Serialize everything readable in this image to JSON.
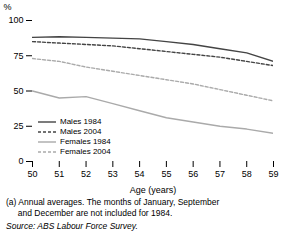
{
  "chart_data": {
    "type": "line",
    "x": [
      50,
      51,
      52,
      53,
      54,
      55,
      56,
      57,
      58,
      59
    ],
    "xlabel": "Age (years)",
    "ylabel": "%",
    "xlim": [
      50,
      59
    ],
    "xticks": [
      50,
      51,
      52,
      53,
      54,
      55,
      56,
      57,
      58,
      59
    ],
    "ylim": [
      0,
      100
    ],
    "yticks": [
      0,
      25,
      50,
      75,
      100
    ],
    "grid": false,
    "legend": "lower left",
    "series": [
      {
        "name": "Males 1984",
        "color": "#444444",
        "line_style": "solid",
        "values": [
          88,
          88.5,
          88,
          87.5,
          87,
          85,
          83,
          80,
          77,
          71
        ]
      },
      {
        "name": "Males 2004",
        "color": "#444444",
        "line_style": "dashed",
        "values": [
          85,
          84,
          83,
          82,
          80,
          78,
          76,
          74,
          71,
          68
        ]
      },
      {
        "name": "Females 1984",
        "color": "#aaaaaa",
        "line_style": "solid",
        "values": [
          50,
          45,
          46,
          41,
          36,
          31,
          28,
          25,
          23,
          20
        ]
      },
      {
        "name": "Females 2004",
        "color": "#aaaaaa",
        "line_style": "dashed",
        "values": [
          73,
          71,
          67,
          64,
          61,
          58,
          55,
          51,
          47,
          43
        ]
      }
    ],
    "footnote": "(a) Annual averages. The months of January, September\n     and December are not included for 1984.",
    "source": "Source: ABS Labour Force Survey."
  }
}
